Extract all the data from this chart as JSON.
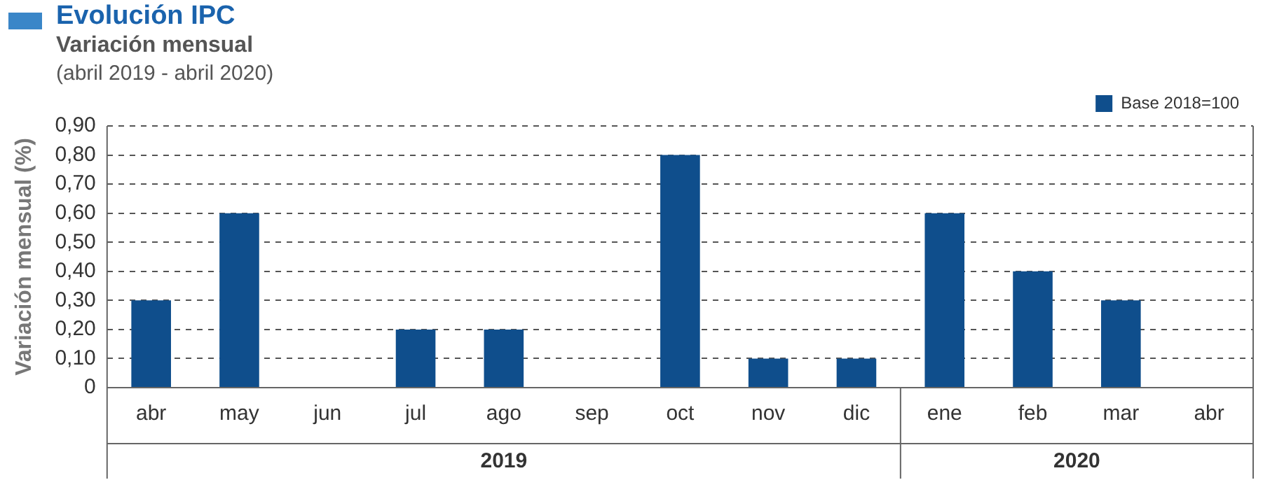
{
  "chart_data": {
    "type": "bar",
    "title": "Evolución IPC",
    "subtitle": "Variación mensual",
    "ylabel": "Variación mensual (%)",
    "annotations": [
      "(abril 2019 - abril 2020)",
      "2019",
      "2020"
    ],
    "categories": [
      "abr",
      "may",
      "jun",
      "jul",
      "ago",
      "sep",
      "oct",
      "nov",
      "dic",
      "ene",
      "feb",
      "mar",
      "abr"
    ],
    "series": [
      {
        "name": "Base 2018=100",
        "color": "#0f4e8c",
        "values": [
          0.3,
          0.6,
          0,
          0.2,
          0.2,
          0,
          0.8,
          0.1,
          0.1,
          0.6,
          0.4,
          0.3,
          0
        ]
      }
    ],
    "ylim": [
      0,
      0.9
    ],
    "yticks": [
      {
        "value": 0,
        "label": "0"
      },
      {
        "value": 0.1,
        "label": "0,10"
      },
      {
        "value": 0.2,
        "label": "0,20"
      },
      {
        "value": 0.3,
        "label": "0,30"
      },
      {
        "value": 0.4,
        "label": "0,40"
      },
      {
        "value": 0.5,
        "label": "0,50"
      },
      {
        "value": 0.6,
        "label": "0,60"
      },
      {
        "value": 0.7,
        "label": "0,70"
      },
      {
        "value": 0.8,
        "label": "0,80"
      },
      {
        "value": 0.9,
        "label": "0,90"
      }
    ],
    "grid": "y",
    "legend": "top right"
  }
}
